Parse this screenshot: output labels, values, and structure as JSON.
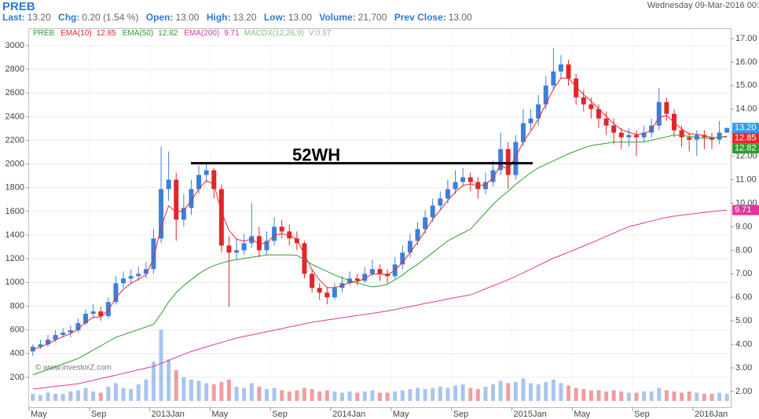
{
  "header": {
    "title": "PREB",
    "date": "Wednesday 09-Mar-2016 00:",
    "quote": [
      {
        "label": "Last:",
        "value": "13.20"
      },
      {
        "label": "Chg:",
        "value": "0.20 (1.54 %)"
      },
      {
        "label": "Open:",
        "value": "13.00"
      },
      {
        "label": "High:",
        "value": "13.20"
      },
      {
        "label": "Low:",
        "value": "13.00"
      },
      {
        "label": "Volume:",
        "value": "21,700"
      },
      {
        "label": "Prev Close:",
        "value": "13.00"
      }
    ]
  },
  "chart_data": {
    "type": "candlestick",
    "symbol": "PREB",
    "symbol_color": "#2e9e2e",
    "categories": [
      "May",
      null,
      null,
      null,
      null,
      null,
      null,
      null,
      "Sep",
      null,
      null,
      null,
      null,
      null,
      null,
      null,
      "2013Jan",
      null,
      null,
      null,
      null,
      null,
      null,
      null,
      "May",
      null,
      null,
      null,
      null,
      null,
      null,
      null,
      "Sep",
      null,
      null,
      null,
      null,
      null,
      null,
      null,
      "2014Jan",
      null,
      null,
      null,
      null,
      null,
      null,
      null,
      "May",
      null,
      null,
      null,
      null,
      null,
      null,
      null,
      "Sep",
      null,
      null,
      null,
      null,
      null,
      null,
      null,
      "2015Jan",
      null,
      null,
      null,
      null,
      null,
      null,
      null,
      "May",
      null,
      null,
      null,
      null,
      null,
      null,
      null,
      "Sep",
      null,
      null,
      null,
      null,
      null,
      null,
      null,
      "2016Jan",
      null,
      null,
      null,
      null
    ],
    "open": [
      3.7,
      3.9,
      4.0,
      4.2,
      4.4,
      4.5,
      4.6,
      4.9,
      5.3,
      5.4,
      5.2,
      5.8,
      6.6,
      6.8,
      6.9,
      7.0,
      7.2,
      8.5,
      10.6,
      11.0,
      9.3,
      9.8,
      10.6,
      11.2,
      11.4,
      10.6,
      8.2,
      7.9,
      8.0,
      8.3,
      8.6,
      8.0,
      8.4,
      9.0,
      8.8,
      8.5,
      8.3,
      7.0,
      6.4,
      6.2,
      6.0,
      6.4,
      6.6,
      6.8,
      6.7,
      7.0,
      7.2,
      7.0,
      6.9,
      7.4,
      7.9,
      8.4,
      8.9,
      9.4,
      9.9,
      10.2,
      10.6,
      10.9,
      11.1,
      10.9,
      10.6,
      10.9,
      11.4,
      12.3,
      11.2,
      12.6,
      13.4,
      13.6,
      14.2,
      15.0,
      15.6,
      15.9,
      15.3,
      14.5,
      14.2,
      14.0,
      13.6,
      13.3,
      13.0,
      12.8,
      12.9,
      12.8,
      13.0,
      13.3,
      14.3,
      13.8,
      13.1,
      12.8,
      12.7,
      12.9,
      12.8,
      12.7,
      13.0
    ],
    "high": [
      4.0,
      4.2,
      4.4,
      4.6,
      4.7,
      4.8,
      5.1,
      5.5,
      5.7,
      5.6,
      6.0,
      6.9,
      7.1,
      7.2,
      7.3,
      7.5,
      8.9,
      12.4,
      12.2,
      11.3,
      10.4,
      11.0,
      11.6,
      11.7,
      11.5,
      10.8,
      8.6,
      8.5,
      8.7,
      10.0,
      9.0,
      8.8,
      9.4,
      9.3,
      9.1,
      8.8,
      8.4,
      7.2,
      6.6,
      6.4,
      6.6,
      6.9,
      7.1,
      7.0,
      7.3,
      7.6,
      7.4,
      7.2,
      7.7,
      8.2,
      8.7,
      9.2,
      9.7,
      10.2,
      10.5,
      11.0,
      11.4,
      11.5,
      11.3,
      11.1,
      11.3,
      11.8,
      13.0,
      12.6,
      12.9,
      14.0,
      14.0,
      14.6,
      15.4,
      16.6,
      16.3,
      16.1,
      15.5,
      14.8,
      14.5,
      14.2,
      13.9,
      13.6,
      13.2,
      13.2,
      13.1,
      13.3,
      13.6,
      14.9,
      14.5,
      14.0,
      13.3,
      13.0,
      13.1,
      13.1,
      13.0,
      13.5,
      13.2
    ],
    "low": [
      3.5,
      3.8,
      3.9,
      4.1,
      4.3,
      4.3,
      4.5,
      4.8,
      5.1,
      5.0,
      5.1,
      5.7,
      6.4,
      6.6,
      6.7,
      6.8,
      7.0,
      8.3,
      10.1,
      8.4,
      9.0,
      9.5,
      10.4,
      10.9,
      10.2,
      7.9,
      5.6,
      7.6,
      7.8,
      8.1,
      7.7,
      7.8,
      8.2,
      8.5,
      8.2,
      8.0,
      6.8,
      6.2,
      5.9,
      5.7,
      5.9,
      6.2,
      6.5,
      6.5,
      6.6,
      6.9,
      6.7,
      6.6,
      6.8,
      7.2,
      7.7,
      8.2,
      8.7,
      9.2,
      9.7,
      10.0,
      10.4,
      10.7,
      10.5,
      10.2,
      10.4,
      10.7,
      11.2,
      10.6,
      11.0,
      12.4,
      13.1,
      13.3,
      14.0,
      14.8,
      15.3,
      15.0,
      14.2,
      13.9,
      13.6,
      13.2,
      12.9,
      12.5,
      12.3,
      12.4,
      12.0,
      12.6,
      12.8,
      13.1,
      13.5,
      12.8,
      12.4,
      12.2,
      12.0,
      12.3,
      12.3,
      12.5,
      13.0
    ],
    "close": [
      3.9,
      4.0,
      4.2,
      4.4,
      4.5,
      4.6,
      4.9,
      5.3,
      5.4,
      5.2,
      5.8,
      6.6,
      6.8,
      6.9,
      7.0,
      7.2,
      8.5,
      10.6,
      11.0,
      9.3,
      9.8,
      10.6,
      11.2,
      11.4,
      10.6,
      8.2,
      7.9,
      8.0,
      8.3,
      8.6,
      8.0,
      8.4,
      9.0,
      8.8,
      8.5,
      8.3,
      7.0,
      6.4,
      6.2,
      6.0,
      6.4,
      6.6,
      6.8,
      6.7,
      7.0,
      7.2,
      7.0,
      6.9,
      7.4,
      7.9,
      8.4,
      8.9,
      9.4,
      9.9,
      10.2,
      10.6,
      10.9,
      11.1,
      10.9,
      10.6,
      10.9,
      11.4,
      12.3,
      11.2,
      12.6,
      13.4,
      13.6,
      14.2,
      15.0,
      15.6,
      15.9,
      15.3,
      14.5,
      14.2,
      14.0,
      13.6,
      13.3,
      13.0,
      12.8,
      12.9,
      12.8,
      13.0,
      13.3,
      14.3,
      13.8,
      13.1,
      12.8,
      12.7,
      12.9,
      12.8,
      12.7,
      13.0,
      13.2
    ],
    "last_label": "13.20",
    "volume": [
      60,
      50,
      70,
      60,
      60,
      80,
      90,
      110,
      80,
      70,
      120,
      150,
      110,
      100,
      140,
      180,
      330,
      600,
      350,
      260,
      200,
      180,
      170,
      150,
      140,
      160,
      180,
      120,
      110,
      150,
      120,
      100,
      110,
      90,
      80,
      90,
      110,
      100,
      80,
      90,
      80,
      70,
      80,
      70,
      80,
      90,
      70,
      70,
      80,
      90,
      100,
      110,
      100,
      110,
      120,
      110,
      130,
      140,
      110,
      100,
      120,
      140,
      170,
      150,
      160,
      190,
      150,
      140,
      160,
      180,
      150,
      130,
      110,
      100,
      90,
      90,
      80,
      90,
      80,
      70,
      70,
      80,
      80,
      110,
      90,
      80,
      70,
      80,
      70,
      60,
      60,
      70,
      60
    ],
    "up_color": "#3d7fd9",
    "down_color": "#e0262b",
    "series": [
      {
        "name": "EMA(10)",
        "color": "#e8262d",
        "values": [
          3.79,
          3.88,
          4.02,
          4.19,
          4.33,
          4.45,
          4.65,
          4.94,
          5.15,
          5.17,
          5.45,
          5.97,
          6.34,
          6.59,
          6.77,
          6.96,
          7.65,
          8.98,
          9.89,
          9.62,
          9.7,
          10.1,
          10.6,
          10.96,
          10.8,
          9.63,
          8.85,
          8.47,
          8.39,
          8.48,
          8.26,
          8.32,
          8.63,
          8.71,
          8.62,
          8.48,
          7.81,
          7.18,
          6.74,
          6.41,
          6.41,
          6.5,
          6.63,
          6.66,
          6.81,
          6.99,
          6.99,
          6.95,
          7.15,
          7.49,
          7.9,
          8.35,
          8.82,
          9.31,
          9.71,
          10.11,
          10.47,
          10.75,
          10.82,
          10.72,
          10.8,
          11.07,
          11.62,
          11.43,
          11.96,
          12.61,
          13.06,
          13.57,
          14.21,
          14.84,
          15.32,
          15.31,
          14.95,
          14.61,
          14.34,
          14.01,
          13.69,
          13.38,
          13.12,
          13.02,
          12.92,
          12.96,
          13.11,
          13.65,
          13.72,
          13.44,
          13.15,
          12.95,
          12.93,
          12.87,
          12.79,
          12.8,
          12.85
        ]
      },
      {
        "name": "EMA(50)",
        "color": "#2e9e2e",
        "values": [
          2.7,
          2.82,
          2.93,
          3.05,
          3.17,
          3.28,
          3.4,
          3.58,
          3.76,
          3.94,
          4.12,
          4.3,
          4.41,
          4.52,
          4.63,
          4.74,
          4.85,
          5.3,
          5.8,
          6.2,
          6.5,
          6.75,
          7.0,
          7.2,
          7.35,
          7.45,
          7.55,
          7.6,
          7.65,
          7.7,
          7.75,
          7.8,
          7.8,
          7.8,
          7.8,
          7.78,
          7.6,
          7.4,
          7.25,
          7.1,
          6.95,
          6.82,
          6.72,
          6.62,
          6.52,
          6.44,
          6.48,
          6.56,
          6.75,
          6.95,
          7.2,
          7.4,
          7.65,
          7.9,
          8.15,
          8.4,
          8.57,
          8.73,
          8.9,
          9.25,
          9.6,
          9.95,
          10.25,
          10.5,
          10.8,
          11.05,
          11.3,
          11.5,
          11.65,
          11.8,
          11.95,
          12.1,
          12.22,
          12.35,
          12.45,
          12.5,
          12.55,
          12.6,
          12.6,
          12.6,
          12.6,
          12.6,
          12.68,
          12.75,
          12.82,
          12.9,
          12.88,
          12.84,
          12.8,
          12.75,
          12.77,
          12.8,
          12.82
        ]
      },
      {
        "name": "EMA(200)",
        "color": "#e0379e",
        "values": [
          2.1,
          2.14,
          2.18,
          2.22,
          2.25,
          2.29,
          2.33,
          2.4,
          2.47,
          2.55,
          2.62,
          2.69,
          2.77,
          2.84,
          2.92,
          2.99,
          3.06,
          3.19,
          3.32,
          3.45,
          3.58,
          3.7,
          3.8,
          3.89,
          3.99,
          4.08,
          4.18,
          4.27,
          4.34,
          4.4,
          4.47,
          4.54,
          4.6,
          4.67,
          4.74,
          4.8,
          4.87,
          4.94,
          4.99,
          5.04,
          5.08,
          5.13,
          5.18,
          5.23,
          5.27,
          5.32,
          5.37,
          5.42,
          5.48,
          5.55,
          5.61,
          5.67,
          5.74,
          5.8,
          5.86,
          5.93,
          5.99,
          6.05,
          6.1,
          6.23,
          6.36,
          6.49,
          6.62,
          6.75,
          6.89,
          7.04,
          7.2,
          7.35,
          7.51,
          7.66,
          7.79,
          7.92,
          8.05,
          8.18,
          8.31,
          8.45,
          8.59,
          8.73,
          8.87,
          9.0,
          9.08,
          9.16,
          9.24,
          9.32,
          9.4,
          9.45,
          9.49,
          9.53,
          9.57,
          9.61,
          9.65,
          9.68,
          9.71
        ]
      }
    ],
    "legend_extra": [
      "MACDX(12,26,9)",
      "V:0.97"
    ],
    "ylim": [
      1.33,
      17.4
    ],
    "yticks": [
      {
        "value": 2,
        "label": "2.00"
      },
      {
        "value": 3,
        "label": "3.00"
      },
      {
        "value": 4,
        "label": "4.00"
      },
      {
        "value": 5,
        "label": "5.00"
      },
      {
        "value": 6,
        "label": "6.00"
      },
      {
        "value": 7,
        "label": "7.00"
      },
      {
        "value": 8,
        "label": "8.00"
      },
      {
        "value": 9,
        "label": "9.00"
      },
      {
        "value": 10,
        "label": "10.00"
      },
      {
        "value": 11,
        "label": "11.00"
      },
      {
        "value": 12,
        "label": "12.00"
      },
      {
        "value": 13,
        "label": "13.00"
      },
      {
        "value": 14,
        "label": "14.00"
      },
      {
        "value": 15,
        "label": "15.00"
      },
      {
        "value": 16,
        "label": "16.00"
      },
      {
        "value": 17,
        "label": "17.00"
      }
    ],
    "y2lim": [
      -53,
      3139
    ],
    "y2ticks": [
      200,
      400,
      600,
      800,
      1000,
      1200,
      1400,
      1600,
      1800,
      2000,
      2200,
      2400,
      2600,
      2800,
      3000
    ],
    "grid": true,
    "annotation": {
      "text": "52WH",
      "value": 11.7
    },
    "watermark": "© www.investorZ.com"
  }
}
